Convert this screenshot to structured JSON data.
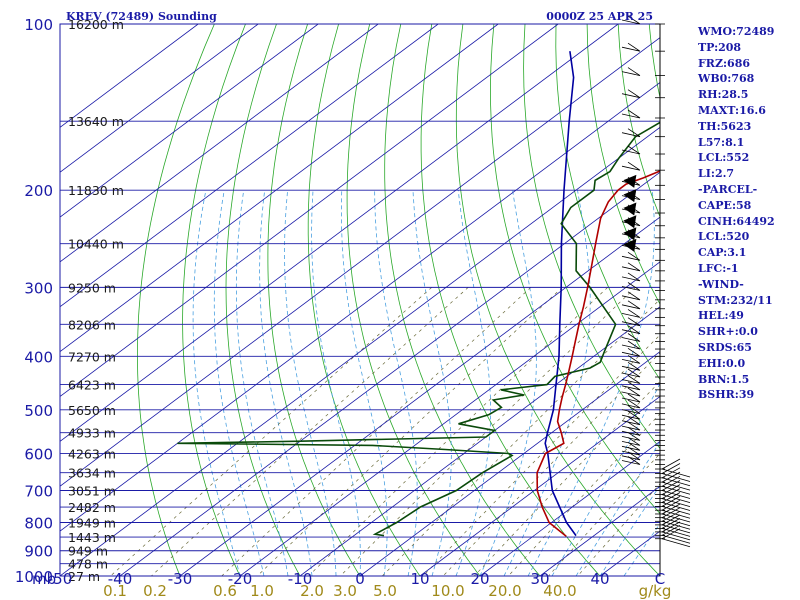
{
  "header": {
    "station": "KREV (72489) Sounding",
    "time": "0000Z 25 APR 25"
  },
  "chart_data": {
    "type": "skew-t log-p",
    "title": "KREV (72489) Sounding",
    "valid_time": "0000Z 25 APR 25",
    "pressure_ticks": [
      100,
      200,
      300,
      400,
      500,
      600,
      700,
      800,
      900,
      1000
    ],
    "pressure_axis_unit": "mb",
    "temperature_ticks": [
      -50,
      -40,
      -30,
      -20,
      -10,
      0,
      10,
      20,
      30,
      40
    ],
    "temperature_unit": "C",
    "temperature_range": [
      -50,
      50
    ],
    "mixing_ratio_labels": [
      "0.1",
      "0.2",
      "0.6",
      "1.0",
      "2.0",
      "3.0",
      "5.0",
      "10.0",
      "20.0",
      "40.0",
      "g/kg"
    ],
    "height_labels": [
      {
        "p": 100,
        "label": "16200 m"
      },
      {
        "p": 150,
        "label": "13640 m"
      },
      {
        "p": 200,
        "label": "11830 m"
      },
      {
        "p": 250,
        "label": "10440 m"
      },
      {
        "p": 300,
        "label": "9250 m"
      },
      {
        "p": 350,
        "label": "8206 m"
      },
      {
        "p": 400,
        "label": "7270 m"
      },
      {
        "p": 450,
        "label": "6423 m"
      },
      {
        "p": 500,
        "label": "5650 m"
      },
      {
        "p": 550,
        "label": "4933 m"
      },
      {
        "p": 600,
        "label": "4263 m"
      },
      {
        "p": 650,
        "label": "3634 m"
      },
      {
        "p": 700,
        "label": "3051 m"
      },
      {
        "p": 750,
        "label": "2482 m"
      },
      {
        "p": 800,
        "label": "1949 m"
      },
      {
        "p": 850,
        "label": "1443 m"
      },
      {
        "p": 900,
        "label": "949 m"
      },
      {
        "p": 950,
        "label": "478 m"
      },
      {
        "p": 1000,
        "label": "27 m"
      }
    ],
    "temperature_profile": [
      [
        847,
        25.5
      ],
      [
        800,
        19.6
      ],
      [
        750,
        15
      ],
      [
        700,
        10.5
      ],
      [
        650,
        6.5
      ],
      [
        600,
        3.6
      ],
      [
        575,
        4.4
      ],
      [
        550,
        1.6
      ],
      [
        525,
        -1.5
      ],
      [
        500,
        -3.8
      ],
      [
        475,
        -6.1
      ],
      [
        450,
        -8.4
      ],
      [
        425,
        -10.9
      ],
      [
        400,
        -13.6
      ],
      [
        375,
        -16.5
      ],
      [
        350,
        -19.6
      ],
      [
        325,
        -22.8
      ],
      [
        300,
        -26.4
      ],
      [
        275,
        -30.4
      ],
      [
        250,
        -34.8
      ],
      [
        225,
        -39.6
      ],
      [
        210,
        -42
      ],
      [
        200,
        -43
      ],
      [
        195,
        -43
      ],
      [
        190,
        -41.5
      ],
      [
        180,
        -39.2
      ],
      [
        170,
        -38.8
      ],
      [
        160,
        -39.8
      ],
      [
        150,
        -39.1
      ],
      [
        140,
        -39.3
      ],
      [
        130,
        -39.4
      ],
      [
        120,
        -43.4
      ],
      [
        110,
        -46.6
      ],
      [
        100,
        -51
      ]
    ],
    "dewpoint_profile": [
      [
        845,
        -5
      ],
      [
        840,
        -6.8
      ],
      [
        800,
        -5.8
      ],
      [
        750,
        -5.3
      ],
      [
        700,
        -3
      ],
      [
        650,
        -2.6
      ],
      [
        605,
        -1.5
      ],
      [
        600,
        -2.5
      ],
      [
        590,
        -14
      ],
      [
        580,
        -27
      ],
      [
        575,
        -60
      ],
      [
        570,
        -40
      ],
      [
        560,
        -10
      ],
      [
        545,
        -10
      ],
      [
        530,
        -17.5
      ],
      [
        510,
        -14.5
      ],
      [
        495,
        -14
      ],
      [
        480,
        -17
      ],
      [
        470,
        -13
      ],
      [
        460,
        -18
      ],
      [
        450,
        -11.5
      ],
      [
        435,
        -12
      ],
      [
        420,
        -8
      ],
      [
        410,
        -7.6
      ],
      [
        390,
        -9.5
      ],
      [
        350,
        -13.5
      ],
      [
        300,
        -26
      ],
      [
        280,
        -32
      ],
      [
        250,
        -38
      ],
      [
        230,
        -45
      ],
      [
        215,
        -47
      ],
      [
        200,
        -47
      ],
      [
        192,
        -49
      ],
      [
        185,
        -48.5
      ],
      [
        175,
        -50
      ],
      [
        160,
        -52
      ],
      [
        150,
        -51
      ],
      [
        140,
        -50
      ],
      [
        130,
        -52
      ],
      [
        120,
        -53
      ],
      [
        110,
        -56
      ],
      [
        100,
        -59
      ]
    ],
    "parcel_profile": [
      [
        845,
        27
      ],
      [
        800,
        22.5
      ],
      [
        700,
        13
      ],
      [
        600,
        4
      ],
      [
        575,
        1.3
      ],
      [
        550,
        -0.7
      ],
      [
        500,
        -4.8
      ],
      [
        450,
        -10
      ],
      [
        400,
        -15.8
      ],
      [
        350,
        -22.8
      ],
      [
        300,
        -30.8
      ],
      [
        250,
        -40.5
      ],
      [
        200,
        -52
      ],
      [
        150,
        -66.5
      ],
      [
        125,
        -75.5
      ],
      [
        112,
        -82
      ]
    ],
    "stats": [
      "WMO:72489",
      "TP:208",
      "FRZ:686",
      "WB0:768",
      "RH:28.5",
      "MAXT:16.6",
      "TH:5623",
      "L57:8.1",
      "LCL:552",
      "LI:2.7",
      "-PARCEL-",
      "CAPE:58",
      "CINH:64492",
      "LCL:520",
      "CAP:3.1",
      "LFC:-1",
      "-WIND-",
      "STM:232/11",
      "HEL:49",
      "SHR+:0.0",
      "SRDS:65",
      "EHI:0.0",
      "BRN:1.5",
      "BSHR:39"
    ],
    "colors": {
      "isobar": "#1a1aa6",
      "isotherm": "#1a1aa6",
      "dry_adiabat": "#2aa82a",
      "moist_adiabat": "#4aa0e0",
      "mixing_ratio": "#6a6a3a",
      "temperature": "#b00000",
      "dewpoint": "#0a4a0a",
      "parcel": "#0000a0",
      "wind": "#000000",
      "text": "#1a1aa6",
      "mixing_label": "#a08a1a"
    },
    "grid": true
  }
}
